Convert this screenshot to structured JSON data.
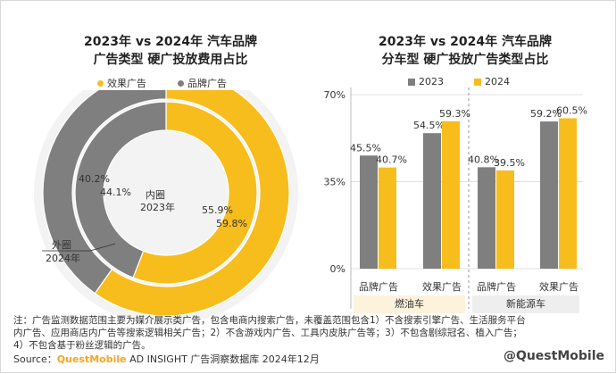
{
  "left_panel": {
    "title_line1": "2023年 vs 2024年 汽车品牌",
    "title_line2": "广告类型 硬广投放费用占比",
    "legend": [
      {
        "label": "效果广告",
        "color": "#f7bd1c"
      },
      {
        "label": "品牌广告",
        "color": "#7f7f7f"
      }
    ],
    "inner_label": "内圈",
    "inner_year": "2023年",
    "outer_label": "外圈",
    "outer_year": "2024年"
  },
  "right_panel": {
    "title_line1": "2023年 vs 2024年 汽车品牌",
    "title_line2": "分车型 硬广投放广告类型占比",
    "legend": [
      {
        "label": "2023",
        "color": "#7f7f7f"
      },
      {
        "label": "2024",
        "color": "#f7bd1c"
      }
    ],
    "y_ticks": [
      "70%",
      "35%",
      "0%"
    ],
    "groups": [
      "燃油车",
      "新能源车"
    ]
  },
  "chart_data": [
    {
      "type": "pie",
      "variant": "double-donut",
      "rings": [
        {
          "name": "2023年",
          "position": "inner",
          "slices": [
            {
              "label": "效果广告",
              "value": 55.9
            },
            {
              "label": "品牌广告",
              "value": 44.1
            }
          ]
        },
        {
          "name": "2024年",
          "position": "outer",
          "slices": [
            {
              "label": "效果广告",
              "value": 59.8
            },
            {
              "label": "品牌广告",
              "value": 40.2
            }
          ]
        }
      ],
      "value_labels": {
        "inner_effect": "55.9%",
        "inner_brand": "44.1%",
        "outer_effect": "59.8%",
        "outer_brand": "40.2%"
      }
    },
    {
      "type": "bar",
      "categories": [
        "品牌广告",
        "效果广告",
        "品牌广告",
        "效果广告"
      ],
      "groups": [
        "燃油车",
        "燃油车",
        "新能源车",
        "新能源车"
      ],
      "series": [
        {
          "name": "2023",
          "values": [
            45.5,
            54.5,
            40.8,
            59.2
          ],
          "labels": [
            "45.5%",
            "54.5%",
            "40.8%",
            "59.2%"
          ]
        },
        {
          "name": "2024",
          "values": [
            40.7,
            59.3,
            39.5,
            60.5
          ],
          "labels": [
            "40.7%",
            "59.3%",
            "39.5%",
            "60.5%"
          ]
        }
      ],
      "ylim": [
        0,
        70
      ]
    }
  ],
  "footer": {
    "note1": "注：广告监测数据范围主要为媒介展示类广告，包含电商内搜索广告，未覆盖范围包含1）不含搜索引擎广告、生活服务平台",
    "note2": "内广告、应用商店内广告等搜索逻辑相关广告；2）不含游戏内广告、工具内皮肤广告等；3）不包含剧综冠名、植入广告；",
    "note3": "4）不包含基于粉丝逻辑的广告。",
    "source_prefix": "Source：",
    "source_brand": "QuestMobile",
    "source_rest": " AD INSIGHT 广告洞察数据库 2024年12月",
    "watermark": "@QuestMobile"
  }
}
